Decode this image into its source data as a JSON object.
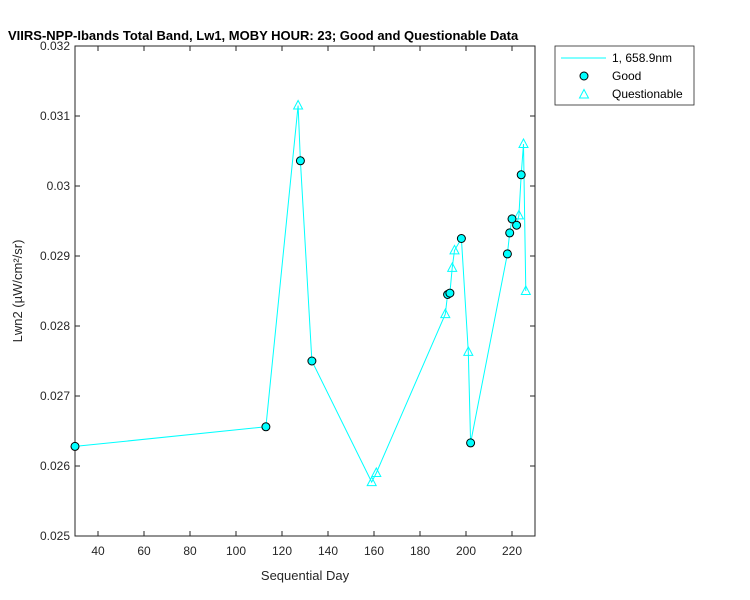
{
  "chart_data": {
    "type": "line",
    "title": "VIIRS-NPP-Ibands Total Band, Lw1, MOBY HOUR: 23;  Good and Questionable Data",
    "xlabel": "Sequential Day",
    "ylabel": "Lwn2 (µW/cm²/sr)",
    "xlim": [
      30,
      230
    ],
    "ylim": [
      0.025,
      0.032
    ],
    "xticks": [
      40,
      60,
      80,
      100,
      120,
      140,
      160,
      180,
      200,
      220
    ],
    "yticks": [
      0.025,
      0.026,
      0.027,
      0.028,
      0.029,
      0.03,
      0.031,
      0.032
    ],
    "ytick_labels": [
      "0.025",
      "0.026",
      "0.027",
      "0.028",
      "0.029",
      "0.03",
      "0.031",
      "0.032"
    ],
    "grid": false,
    "legend_position": "outside-top-right",
    "color": "#00FFFF",
    "line_series": {
      "name": "1, 658.9nm",
      "points": [
        [
          30,
          0.02628
        ],
        [
          113,
          0.02656
        ],
        [
          127,
          0.03115
        ],
        [
          128,
          0.03036
        ],
        [
          133,
          0.0275
        ],
        [
          159,
          0.02577
        ],
        [
          161,
          0.0259
        ],
        [
          191,
          0.02817
        ],
        [
          192,
          0.02845
        ],
        [
          193,
          0.02847
        ],
        [
          194,
          0.02883
        ],
        [
          195,
          0.02908
        ],
        [
          198,
          0.02925
        ],
        [
          201,
          0.02763
        ],
        [
          202,
          0.02633
        ],
        [
          218,
          0.02903
        ],
        [
          219,
          0.02933
        ],
        [
          220,
          0.02953
        ],
        [
          222,
          0.02944
        ],
        [
          223,
          0.02958
        ],
        [
          224,
          0.03016
        ],
        [
          225,
          0.0306
        ],
        [
          226,
          0.0285
        ]
      ]
    },
    "good": {
      "name": "Good",
      "points": [
        [
          30,
          0.02628
        ],
        [
          113,
          0.02656
        ],
        [
          128,
          0.03036
        ],
        [
          133,
          0.0275
        ],
        [
          192,
          0.02845
        ],
        [
          193,
          0.02847
        ],
        [
          198,
          0.02925
        ],
        [
          202,
          0.02633
        ],
        [
          218,
          0.02903
        ],
        [
          219,
          0.02933
        ],
        [
          220,
          0.02953
        ],
        [
          222,
          0.02944
        ],
        [
          224,
          0.03016
        ]
      ]
    },
    "questionable": {
      "name": "Questionable",
      "points": [
        [
          127,
          0.03115
        ],
        [
          159,
          0.02577
        ],
        [
          161,
          0.0259
        ],
        [
          191,
          0.02817
        ],
        [
          194,
          0.02883
        ],
        [
          195,
          0.02908
        ],
        [
          201,
          0.02763
        ],
        [
          223,
          0.02958
        ],
        [
          225,
          0.0306
        ],
        [
          226,
          0.0285
        ]
      ]
    }
  }
}
